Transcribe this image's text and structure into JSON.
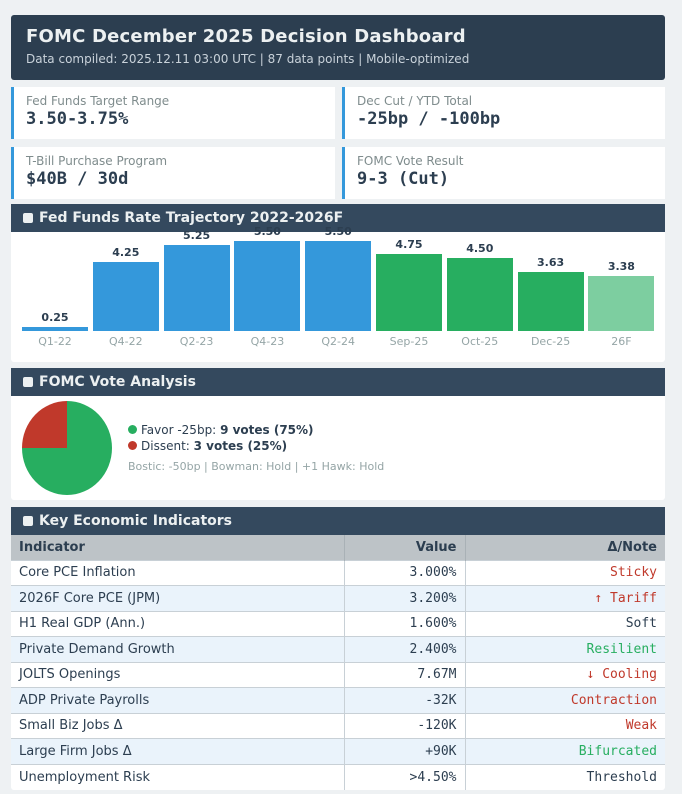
{
  "header": {
    "title": "FOMC December 2025 Decision Dashboard",
    "subtitle": "Data compiled: 2025.12.11 03:00 UTC | 87 data points | Mobile-optimized"
  },
  "cards": [
    {
      "label": "Fed Funds Target Range",
      "value": "3.50-3.75%"
    },
    {
      "label": "Dec Cut / YTD Total",
      "value": "-25bp / -100bp"
    },
    {
      "label": "T-Bill Purchase Program",
      "value": "$40B / 30d"
    },
    {
      "label": "FOMC Vote Result",
      "value": "9-3 (Cut)"
    }
  ],
  "colors": {
    "blue": "#3498db",
    "green": "#27ae60",
    "forecast": "#7dcea0",
    "red": "#c0392b",
    "header": "#2c3e50"
  },
  "rate_chart": {
    "title": "Fed Funds Rate Trajectory 2022-2026F"
  },
  "chart_data": [
    {
      "type": "bar",
      "title": "Fed Funds Rate Trajectory 2022-2026F",
      "categories": [
        "Q1-22",
        "Q4-22",
        "Q2-23",
        "Q4-23",
        "Q2-24",
        "Sep-25",
        "Oct-25",
        "Dec-25",
        "26F"
      ],
      "values": [
        0.25,
        4.25,
        5.25,
        5.5,
        5.5,
        4.75,
        4.5,
        3.63,
        3.38
      ],
      "value_labels": [
        "0.25",
        "4.25",
        "5.25",
        "5.50",
        "5.50",
        "4.75",
        "4.50",
        "3.63",
        "3.38"
      ],
      "bar_colors": [
        "#3498db",
        "#3498db",
        "#3498db",
        "#3498db",
        "#3498db",
        "#27ae60",
        "#27ae60",
        "#27ae60",
        "#7dcea0"
      ],
      "ylim": [
        0,
        6.3
      ]
    },
    {
      "type": "pie",
      "title": "FOMC Vote Analysis",
      "categories": [
        "Favor -25bp",
        "Dissent"
      ],
      "values": [
        9,
        3
      ],
      "colors": [
        "#27ae60",
        "#c0392b"
      ]
    }
  ],
  "vote": {
    "title": "FOMC Vote Analysis",
    "favor_label": "Favor -25bp:",
    "favor_value": "9 votes (75%)",
    "dissent_label": "Dissent:",
    "dissent_value": "3 votes (25%)",
    "note": "Bostic: -50bp | Bowman: Hold | +1 Hawk: Hold"
  },
  "indicators": {
    "title": "Key Economic Indicators",
    "columns": [
      "Indicator",
      "Value",
      "Δ/Note"
    ],
    "rows": [
      {
        "name": "Core PCE Inflation",
        "value": "3.000%",
        "note": "Sticky",
        "tone": "neg"
      },
      {
        "name": "2026F Core PCE (JPM)",
        "value": "3.200%",
        "note": "↑ Tariff",
        "tone": "neg"
      },
      {
        "name": "H1 Real GDP (Ann.)",
        "value": "1.600%",
        "note": "Soft",
        "tone": "neutral"
      },
      {
        "name": "Private Demand Growth",
        "value": "2.400%",
        "note": "Resilient",
        "tone": "pos"
      },
      {
        "name": "JOLTS Openings",
        "value": "7.67M",
        "note": "↓ Cooling",
        "tone": "neg"
      },
      {
        "name": "ADP Private Payrolls",
        "value": "-32K",
        "note": "Contraction",
        "tone": "neg"
      },
      {
        "name": "Small Biz Jobs Δ",
        "value": "-120K",
        "note": "Weak",
        "tone": "neg"
      },
      {
        "name": "Large Firm Jobs Δ",
        "value": "+90K",
        "note": "Bifurcated",
        "tone": "pos"
      },
      {
        "name": "Unemployment Risk",
        "value": ">4.50%",
        "note": "Threshold",
        "tone": "neutral"
      }
    ]
  }
}
